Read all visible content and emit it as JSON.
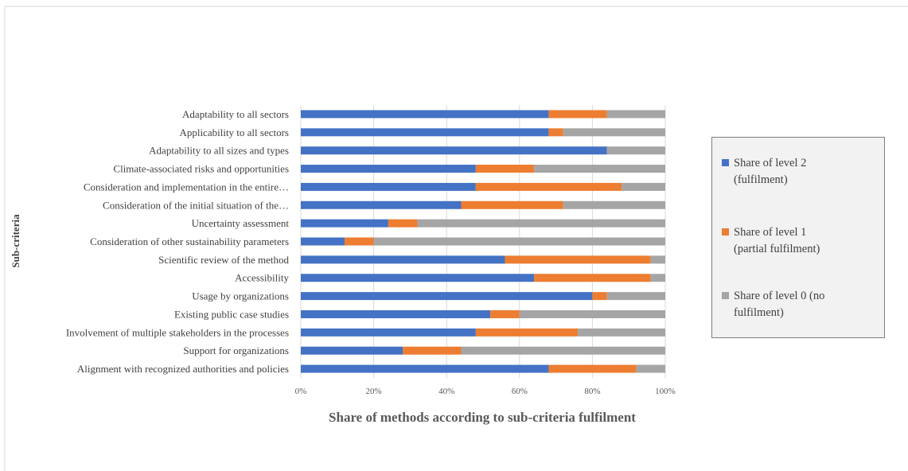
{
  "chart_data": {
    "type": "bar",
    "orientation": "horizontal",
    "stacked": "100%",
    "categories": [
      "Adaptability to all sectors",
      "Applicability to all sectors",
      "Adaptability to all sizes and types",
      "Climate-associated risks and opportunities",
      "Consideration and implementation in the entire…",
      "Consideration of the initial situation of the…",
      "Uncertainty assessment",
      "Consideration of other sustainability parameters",
      "Scientific review of the method",
      "Accessibility",
      "Usage by organizations",
      "Existing public case studies",
      "Involvement of multiple stakeholders in the processes",
      "Support for organizations",
      "Alignment with recognized authorities and policies"
    ],
    "series": [
      {
        "name": "Share of level 2 (fulfilment)",
        "name_lines": [
          "Share of level 2",
          "(fulfilment)"
        ],
        "color": "#4472c4",
        "values": [
          68,
          68,
          84,
          48,
          48,
          44,
          24,
          12,
          56,
          64,
          80,
          52,
          48,
          28,
          68
        ]
      },
      {
        "name": "Share of level 1 (partial fulfilment)",
        "name_lines": [
          "Share of level 1",
          "(partial fulfilment)"
        ],
        "color": "#ed7d31",
        "values": [
          16,
          4,
          0,
          16,
          40,
          28,
          8,
          8,
          40,
          32,
          4,
          8,
          28,
          16,
          24
        ]
      },
      {
        "name": "Share of level 0 (no fulfilment)",
        "name_lines": [
          "Share of level 0 (no",
          "fulfilment)"
        ],
        "color": "#a5a5a5",
        "values": [
          16,
          28,
          16,
          36,
          12,
          28,
          68,
          80,
          4,
          4,
          16,
          40,
          24,
          56,
          8
        ]
      }
    ],
    "x_ticks": [
      "0%",
      "20%",
      "40%",
      "60%",
      "80%",
      "100%"
    ],
    "xlim": [
      0,
      100
    ],
    "xlabel": "Share of methods according to sub-criteria fulfilment",
    "ylabel": "Sub-criteria",
    "legend_position": "right",
    "grid": "vertical"
  }
}
